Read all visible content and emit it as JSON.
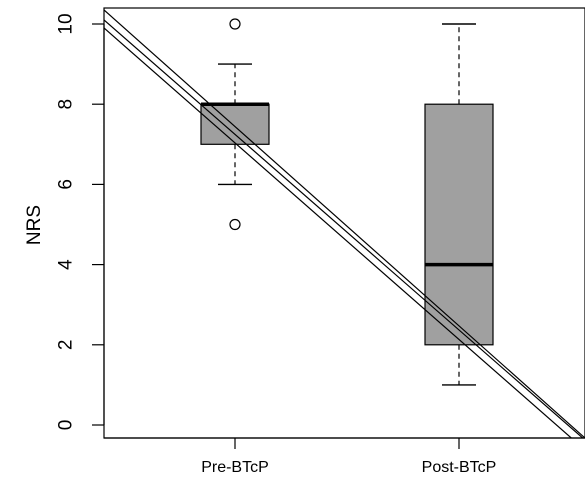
{
  "chart_data": {
    "type": "boxplot",
    "title": "",
    "xlabel": "",
    "ylabel": "NRS",
    "ylim": [
      0,
      10
    ],
    "yticks": [
      0,
      2,
      4,
      6,
      8,
      10
    ],
    "categories": [
      "Pre-BTcP",
      "Post-BTcP"
    ],
    "boxes": [
      {
        "category": "Pre-BTcP",
        "whisker_low": 6,
        "q1": 7,
        "median": 8,
        "q3": 8,
        "whisker_high": 9,
        "outliers": [
          10,
          5
        ]
      },
      {
        "category": "Post-BTcP",
        "whisker_low": 1,
        "q1": 2,
        "median": 4,
        "q3": 8,
        "whisker_high": 10,
        "outliers": []
      }
    ],
    "box_color": "#a0a0a0",
    "grid": false
  }
}
